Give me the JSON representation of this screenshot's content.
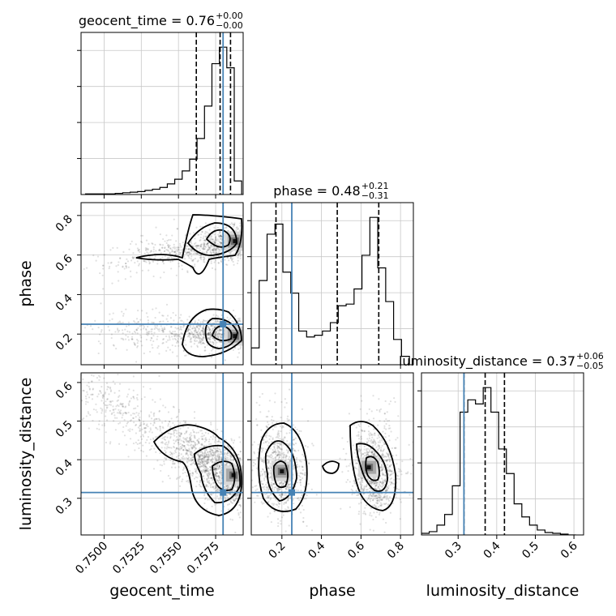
{
  "chart_data": {
    "type": "corner",
    "parameters": [
      "geocent_time",
      "phase",
      "luminosity_distance"
    ],
    "titles": [
      {
        "param": "geocent_time",
        "median": "0.76",
        "plus": "+0.00",
        "minus": "−0.00"
      },
      {
        "param": "phase",
        "median": "0.48",
        "plus": "+0.21",
        "minus": "−0.31"
      },
      {
        "param": "luminosity_distance",
        "median": "0.37",
        "plus": "+0.06",
        "minus": "−0.05"
      }
    ],
    "ranges": {
      "geocent_time": [
        0.74845,
        0.75935
      ],
      "phase": [
        0.045,
        0.865
      ],
      "luminosity_distance": [
        0.205,
        0.625
      ]
    },
    "ticks": {
      "geocent_time": [
        "0.7500",
        "0.7525",
        "0.7550",
        "0.7575"
      ],
      "phase": [
        "0.2",
        "0.4",
        "0.6",
        "0.8"
      ],
      "luminosity_distance": [
        "0.3",
        "0.4",
        "0.5",
        "0.6"
      ]
    },
    "truths": {
      "geocent_time": 0.758,
      "phase": 0.25,
      "luminosity_distance": 0.315
    },
    "quantiles": {
      "geocent_time": [
        0.7562,
        0.7578,
        0.7585
      ],
      "phase": [
        0.17,
        0.48,
        0.69
      ],
      "luminosity_distance": [
        0.315,
        0.37,
        0.42
      ]
    },
    "histograms": {
      "geocent_time": {
        "x": [
          0.749,
          0.7495,
          0.75,
          0.7505,
          0.751,
          0.7515,
          0.752,
          0.7525,
          0.753,
          0.7535,
          0.754,
          0.7545,
          0.755,
          0.7555,
          0.756,
          0.7565,
          0.757,
          0.7575,
          0.758,
          0.7585,
          0.759
        ],
        "counts": [
          1,
          1,
          1,
          1,
          2,
          3,
          4,
          5,
          7,
          9,
          12,
          18,
          26,
          40,
          60,
          95,
          150,
          222,
          250,
          215,
          23
        ]
      },
      "phase": {
        "x": [
          0.065,
          0.105,
          0.145,
          0.185,
          0.225,
          0.265,
          0.305,
          0.345,
          0.385,
          0.425,
          0.465,
          0.505,
          0.545,
          0.585,
          0.625,
          0.665,
          0.705,
          0.745,
          0.785,
          0.825
        ],
        "counts": [
          20,
          100,
          155,
          167,
          110,
          85,
          40,
          33,
          35,
          40,
          50,
          70,
          72,
          90,
          130,
          175,
          115,
          75,
          30,
          10
        ]
      },
      "luminosity_distance": {
        "x": [
          0.215,
          0.235,
          0.255,
          0.275,
          0.295,
          0.315,
          0.335,
          0.355,
          0.375,
          0.395,
          0.415,
          0.435,
          0.455,
          0.475,
          0.495,
          0.515,
          0.535,
          0.555,
          0.575,
          0.595
        ],
        "counts": [
          2,
          4,
          12,
          25,
          60,
          150,
          165,
          160,
          180,
          150,
          105,
          75,
          38,
          22,
          12,
          6,
          3,
          2,
          1,
          0
        ]
      }
    }
  }
}
